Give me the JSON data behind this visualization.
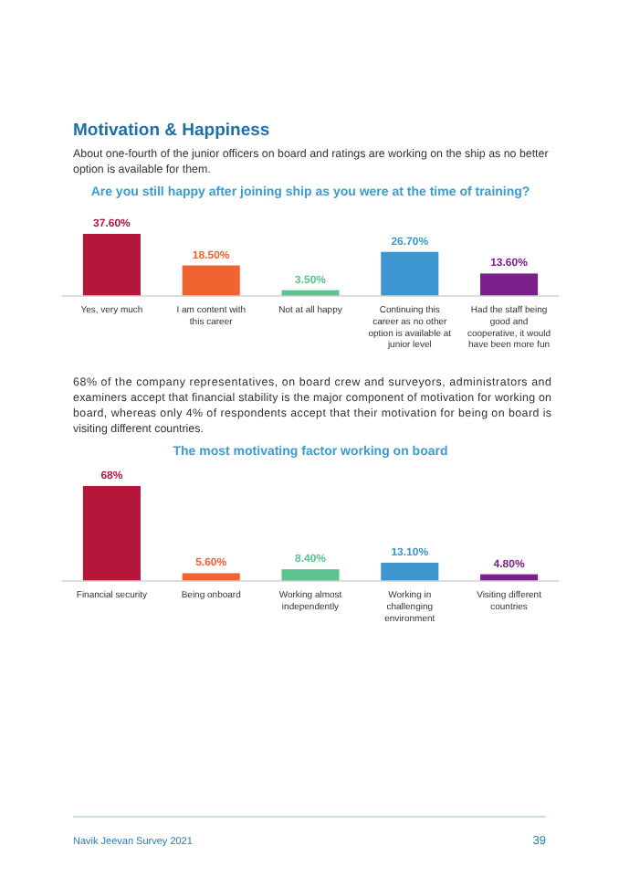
{
  "chart_data": [
    {
      "type": "bar",
      "title": "Are you still happy after joining ship as you were at the time of training?",
      "relative": false,
      "annotations": [
        "Motivation & Happiness",
        "About one-fourth of the junior officers on board and ratings are working on the ship as no better option is available for them."
      ],
      "categories": [
        "Yes, very much",
        "I am content with this career",
        "Not at all happy",
        "Continuing this career as no other option is available at junior level",
        "Had the staff being good and cooperative, it would have been more fun"
      ],
      "values": [
        37.6,
        18.5,
        3.5,
        26.7,
        13.6
      ],
      "colors": [
        "#b5173b",
        "#ef6431",
        "#5cc28f",
        "#3d96cf",
        "#7a1f8c"
      ],
      "value_labels": [
        "37.60%",
        "18.50%",
        "3.50%",
        "26.70%",
        "13.60%"
      ]
    },
    {
      "type": "bar",
      "title": "The most motivating factor working on board",
      "annotations": [
        "68% of the company representatives, on board crew and surveyors, administrators and examiners accept that financial stability is the major component of motivation for working on board, whereas only 4% of respondents accept that their motivation for being on board is visiting different countries.",
        "Navik Jeevan Survey 2021",
        "39"
      ],
      "categories": [
        "Financial security",
        "Being onboard",
        "Working almost independently",
        "Working in challenging environment",
        "Visiting different countries"
      ],
      "values": [
        68,
        5.6,
        8.4,
        13.1,
        4.8
      ],
      "colors": [
        "#b5173b",
        "#ef6431",
        "#5cc28f",
        "#3d96cf",
        "#7a1f8c"
      ],
      "value_labels": [
        "68%",
        "5.60%",
        "8.40%",
        "13.10%",
        "4.80%"
      ]
    }
  ]
}
